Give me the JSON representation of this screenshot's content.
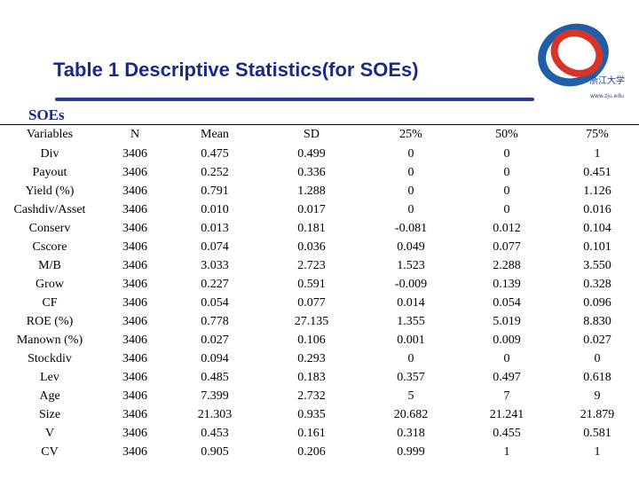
{
  "header": {
    "title": "Table 1 Descriptive Statistics(for SOEs)"
  },
  "logo": {
    "text": "浙江大学",
    "sub": "www.zju.edu",
    "ring_colors": [
      "#1f5fa8",
      "#d8352a"
    ]
  },
  "section": {
    "label": "SOEs"
  },
  "table": {
    "columns": [
      "Variables",
      "N",
      "Mean",
      "SD",
      "25%",
      "50%",
      "75%"
    ],
    "rows": [
      [
        "Div",
        "3406",
        "0.475",
        "0.499",
        "0",
        "0",
        "1"
      ],
      [
        "Payout",
        "3406",
        "0.252",
        "0.336",
        "0",
        "0",
        "0.451"
      ],
      [
        "Yield (%)",
        "3406",
        "0.791",
        "1.288",
        "0",
        "0",
        "1.126"
      ],
      [
        "Cashdiv/Asset",
        "3406",
        "0.010",
        "0.017",
        "0",
        "0",
        "0.016"
      ],
      [
        "Conserv",
        "3406",
        "0.013",
        "0.181",
        "-0.081",
        "0.012",
        "0.104"
      ],
      [
        "Cscore",
        "3406",
        "0.074",
        "0.036",
        "0.049",
        "0.077",
        "0.101"
      ],
      [
        "M/B",
        "3406",
        "3.033",
        "2.723",
        "1.523",
        "2.288",
        "3.550"
      ],
      [
        "Grow",
        "3406",
        "0.227",
        "0.591",
        "-0.009",
        "0.139",
        "0.328"
      ],
      [
        "CF",
        "3406",
        "0.054",
        "0.077",
        "0.014",
        "0.054",
        "0.096"
      ],
      [
        "ROE (%)",
        "3406",
        "0.778",
        "27.135",
        "1.355",
        "5.019",
        "8.830"
      ],
      [
        "Manown (%)",
        "3406",
        "0.027",
        "0.106",
        "0.001",
        "0.009",
        "0.027"
      ],
      [
        "Stockdiv",
        "3406",
        "0.094",
        "0.293",
        "0",
        "0",
        "0"
      ],
      [
        "Lev",
        "3406",
        "0.485",
        "0.183",
        "0.357",
        "0.497",
        "0.618"
      ],
      [
        "Age",
        "3406",
        "7.399",
        "2.732",
        "5",
        "7",
        "9"
      ],
      [
        "Size",
        "3406",
        "21.303",
        "0.935",
        "20.682",
        "21.241",
        "21.879"
      ],
      [
        "V",
        "3406",
        "0.453",
        "0.161",
        "0.318",
        "0.455",
        "0.581"
      ],
      [
        "CV",
        "3406",
        "0.905",
        "0.206",
        "0.999",
        "1",
        "1"
      ]
    ]
  }
}
